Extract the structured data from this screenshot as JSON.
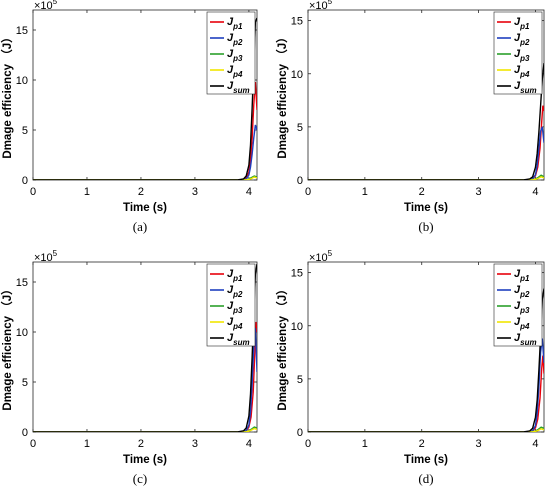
{
  "chart_data": [
    {
      "id": "a",
      "type": "line",
      "caption": "(a)",
      "xlabel": "Time (s)",
      "ylabel": "Dmage efficiency （J）",
      "yexp": "×10",
      "yexp_power": "5",
      "xlim": [
        0,
        4.15
      ],
      "ylim": [
        0,
        17
      ],
      "xticks": [
        0,
        1,
        2,
        3,
        4
      ],
      "yticks": [
        0,
        5,
        10,
        15
      ],
      "series": [
        {
          "name": "J",
          "sub": "p1",
          "color": "#e8000b",
          "x": [
            3.8,
            3.9,
            3.95,
            4.0,
            4.03,
            4.06,
            4.09,
            4.12,
            4.15
          ],
          "values": [
            0,
            0.05,
            0.2,
            0.8,
            2.0,
            4.2,
            7.5,
            9.8,
            7.0
          ]
        },
        {
          "name": "J",
          "sub": "p2",
          "color": "#1f3fbf",
          "x": [
            3.8,
            3.9,
            3.95,
            4.0,
            4.03,
            4.06,
            4.09,
            4.12,
            4.15
          ],
          "values": [
            0,
            0.03,
            0.1,
            0.5,
            1.3,
            2.6,
            4.2,
            5.5,
            5.0
          ]
        },
        {
          "name": "J",
          "sub": "p3",
          "color": "#2ca02c",
          "x": [
            3.8,
            3.9,
            3.95,
            4.0,
            4.05,
            4.1,
            4.15
          ],
          "values": [
            0,
            0.01,
            0.03,
            0.1,
            0.25,
            0.4,
            0.3
          ]
        },
        {
          "name": "J",
          "sub": "p4",
          "color": "#f2e600",
          "x": [
            3.8,
            3.9,
            3.95,
            4.0,
            4.05,
            4.1,
            4.15
          ],
          "values": [
            0,
            0.01,
            0.02,
            0.06,
            0.15,
            0.3,
            0.2
          ]
        },
        {
          "name": "J",
          "sub": "sum",
          "color": "#000000",
          "x": [
            3.7,
            3.8,
            3.9,
            3.95,
            4.0,
            4.03,
            4.06,
            4.09,
            4.12,
            4.15
          ],
          "values": [
            0,
            0.02,
            0.1,
            0.4,
            1.5,
            3.5,
            7.2,
            11.5,
            15.8,
            16.2
          ]
        }
      ]
    },
    {
      "id": "b",
      "type": "line",
      "caption": "(b)",
      "xlabel": "Time (s)",
      "ylabel": "Dmage efficiency （J）",
      "yexp": "×10",
      "yexp_power": "5",
      "xlim": [
        0,
        4.15
      ],
      "ylim": [
        0,
        16
      ],
      "xticks": [
        0,
        1,
        2,
        3,
        4
      ],
      "yticks": [
        0,
        5,
        10,
        15
      ],
      "series": [
        {
          "name": "J",
          "sub": "p1",
          "color": "#e8000b",
          "x": [
            3.8,
            3.9,
            3.95,
            4.0,
            4.04,
            4.08,
            4.11,
            4.13,
            4.15
          ],
          "values": [
            0,
            0.03,
            0.1,
            0.4,
            1.2,
            3.0,
            5.5,
            7.0,
            6.5
          ]
        },
        {
          "name": "J",
          "sub": "p2",
          "color": "#1f3fbf",
          "x": [
            3.8,
            3.9,
            3.95,
            4.0,
            4.03,
            4.06,
            4.09,
            4.12,
            4.15
          ],
          "values": [
            0,
            0.03,
            0.1,
            0.5,
            1.4,
            3.0,
            4.6,
            5.0,
            3.5
          ]
        },
        {
          "name": "J",
          "sub": "p3",
          "color": "#2ca02c",
          "x": [
            3.8,
            3.9,
            3.95,
            4.0,
            4.05,
            4.1,
            4.15
          ],
          "values": [
            0,
            0.01,
            0.03,
            0.1,
            0.25,
            0.45,
            0.3
          ]
        },
        {
          "name": "J",
          "sub": "p4",
          "color": "#f2e600",
          "x": [
            3.8,
            3.9,
            3.95,
            4.0,
            4.05,
            4.1,
            4.15
          ],
          "values": [
            0,
            0.01,
            0.02,
            0.06,
            0.15,
            0.3,
            0.2
          ]
        },
        {
          "name": "J",
          "sub": "sum",
          "color": "#000000",
          "x": [
            3.7,
            3.8,
            3.9,
            3.95,
            4.0,
            4.03,
            4.06,
            4.09,
            4.12,
            4.15
          ],
          "values": [
            0,
            0.02,
            0.1,
            0.3,
            1.2,
            2.5,
            4.5,
            7.0,
            9.5,
            11.0
          ]
        }
      ]
    },
    {
      "id": "c",
      "type": "line",
      "caption": "(c)",
      "xlabel": "Time (s)",
      "ylabel": "Dmage efficiency （J）",
      "yexp": "×10",
      "yexp_power": "5",
      "xlim": [
        0,
        4.15
      ],
      "ylim": [
        0,
        17
      ],
      "xticks": [
        0,
        1,
        2,
        3,
        4
      ],
      "yticks": [
        0,
        5,
        10,
        15
      ],
      "series": [
        {
          "name": "J",
          "sub": "p1",
          "color": "#e8000b",
          "x": [
            3.8,
            3.9,
            3.95,
            4.0,
            4.04,
            4.08,
            4.11,
            4.13,
            4.15
          ],
          "values": [
            0,
            0.03,
            0.1,
            0.5,
            1.5,
            4.0,
            8.0,
            11.0,
            10.0
          ]
        },
        {
          "name": "J",
          "sub": "p2",
          "color": "#1f3fbf",
          "x": [
            3.8,
            3.9,
            3.95,
            4.0,
            4.03,
            4.06,
            4.09,
            4.12,
            4.15
          ],
          "values": [
            0,
            0.04,
            0.15,
            0.7,
            2.0,
            4.8,
            8.5,
            10.4,
            6.0
          ]
        },
        {
          "name": "J",
          "sub": "p3",
          "color": "#2ca02c",
          "x": [
            3.8,
            3.9,
            3.95,
            4.0,
            4.05,
            4.1,
            4.15
          ],
          "values": [
            0,
            0.01,
            0.03,
            0.12,
            0.3,
            0.5,
            0.4
          ]
        },
        {
          "name": "J",
          "sub": "p4",
          "color": "#f2e600",
          "x": [
            3.8,
            3.9,
            3.95,
            4.0,
            4.05,
            4.1,
            4.15
          ],
          "values": [
            0,
            0.01,
            0.02,
            0.08,
            0.2,
            0.35,
            0.25
          ]
        },
        {
          "name": "J",
          "sub": "sum",
          "color": "#000000",
          "x": [
            3.7,
            3.8,
            3.9,
            3.95,
            4.0,
            4.03,
            4.06,
            4.09,
            4.12,
            4.15
          ],
          "values": [
            0,
            0.02,
            0.12,
            0.4,
            1.6,
            3.8,
            7.5,
            12.0,
            15.8,
            16.8
          ]
        }
      ]
    },
    {
      "id": "d",
      "type": "line",
      "caption": "(d)",
      "xlabel": "Time (s)",
      "ylabel": "Dmage efficiency （J）",
      "yexp": "×10",
      "yexp_power": "5",
      "xlim": [
        0,
        4.15
      ],
      "ylim": [
        0,
        16
      ],
      "xticks": [
        0,
        1,
        2,
        3,
        4
      ],
      "yticks": [
        0,
        5,
        10,
        15
      ],
      "series": [
        {
          "name": "J",
          "sub": "p1",
          "color": "#e8000b",
          "x": [
            3.8,
            3.9,
            3.95,
            4.0,
            4.04,
            4.08,
            4.11,
            4.13,
            4.15
          ],
          "values": [
            0,
            0.03,
            0.1,
            0.4,
            1.2,
            3.2,
            6.0,
            7.2,
            5.5
          ]
        },
        {
          "name": "J",
          "sub": "p2",
          "color": "#1f3fbf",
          "x": [
            3.8,
            3.9,
            3.95,
            4.0,
            4.03,
            4.06,
            4.09,
            4.12,
            4.15
          ],
          "values": [
            0,
            0.03,
            0.12,
            0.6,
            1.8,
            4.2,
            7.5,
            8.8,
            6.5
          ]
        },
        {
          "name": "J",
          "sub": "p3",
          "color": "#2ca02c",
          "x": [
            3.8,
            3.9,
            3.95,
            4.0,
            4.05,
            4.1,
            4.15
          ],
          "values": [
            0,
            0.01,
            0.03,
            0.1,
            0.25,
            0.45,
            0.35
          ]
        },
        {
          "name": "J",
          "sub": "p4",
          "color": "#f2e600",
          "x": [
            3.8,
            3.9,
            3.95,
            4.0,
            4.05,
            4.1,
            4.15
          ],
          "values": [
            0,
            0.01,
            0.02,
            0.06,
            0.15,
            0.3,
            0.2
          ]
        },
        {
          "name": "J",
          "sub": "sum",
          "color": "#000000",
          "x": [
            3.7,
            3.8,
            3.9,
            3.95,
            4.0,
            4.03,
            4.06,
            4.09,
            4.12,
            4.15
          ],
          "values": [
            0,
            0.02,
            0.1,
            0.35,
            1.4,
            3.0,
            5.8,
            9.0,
            12.5,
            13.5
          ]
        }
      ]
    }
  ]
}
